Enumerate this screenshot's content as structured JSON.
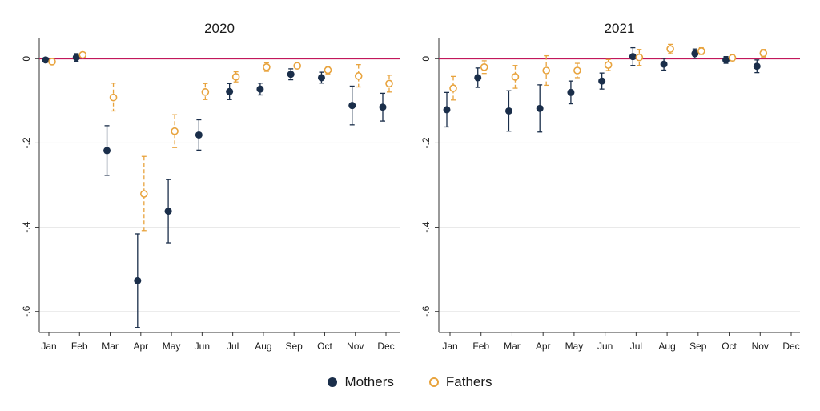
{
  "chart_data": [
    {
      "type": "scatter",
      "title": "2020",
      "xlabel": "",
      "ylabel": "",
      "categories": [
        "Jan",
        "Feb",
        "Mar",
        "Apr",
        "May",
        "Jun",
        "Jul",
        "Aug",
        "Sep",
        "Oct",
        "Nov",
        "Dec"
      ],
      "yticks": [
        "0",
        "-.2",
        "-.4",
        "-.6"
      ],
      "ytick_values": [
        0,
        -0.2,
        -0.4,
        -0.6
      ],
      "ylim": [
        -0.65,
        0.05
      ],
      "reference_line": 0,
      "grid": true,
      "series": [
        {
          "name": "Mothers",
          "marker": "filled-circle",
          "values": [
            -0.003,
            0.003,
            -0.218,
            -0.527,
            -0.362,
            -0.181,
            -0.078,
            -0.072,
            -0.037,
            -0.045,
            -0.111,
            -0.115
          ],
          "ci_low": [
            null,
            -0.006,
            -0.277,
            -0.638,
            -0.437,
            -0.217,
            -0.097,
            -0.086,
            -0.05,
            -0.058,
            -0.157,
            -0.148
          ],
          "ci_high": [
            null,
            0.012,
            -0.159,
            -0.416,
            -0.287,
            -0.145,
            -0.059,
            -0.058,
            -0.024,
            -0.032,
            -0.065,
            -0.082
          ]
        },
        {
          "name": "Fathers",
          "marker": "hollow-circle",
          "values": [
            -0.007,
            0.009,
            -0.092,
            -0.321,
            -0.172,
            -0.079,
            -0.043,
            -0.02,
            -0.017,
            -0.027,
            -0.041,
            -0.059
          ],
          "ci_low": [
            null,
            0.003,
            -0.124,
            -0.408,
            -0.211,
            -0.097,
            -0.055,
            -0.03,
            -0.023,
            -0.036,
            -0.067,
            -0.079
          ],
          "ci_high": [
            null,
            0.015,
            -0.058,
            -0.232,
            -0.133,
            -0.059,
            -0.031,
            -0.01,
            -0.011,
            -0.018,
            -0.014,
            -0.039
          ]
        }
      ]
    },
    {
      "type": "scatter",
      "title": "2021",
      "xlabel": "",
      "ylabel": "",
      "categories": [
        "Jan",
        "Feb",
        "Mar",
        "Apr",
        "May",
        "Jun",
        "Jul",
        "Aug",
        "Sep",
        "Oct",
        "Nov",
        "Dec"
      ],
      "yticks": [
        "0",
        "-.2",
        "-.4",
        "-.6"
      ],
      "ytick_values": [
        0,
        -0.2,
        -0.4,
        -0.6
      ],
      "ylim": [
        -0.65,
        0.05
      ],
      "reference_line": 0,
      "grid": true,
      "series": [
        {
          "name": "Mothers",
          "marker": "filled-circle",
          "values": [
            -0.121,
            -0.045,
            -0.124,
            -0.118,
            -0.08,
            -0.053,
            0.005,
            -0.013,
            0.012,
            -0.003,
            -0.018,
            null
          ],
          "ci_low": [
            -0.162,
            -0.068,
            -0.172,
            -0.174,
            -0.107,
            -0.072,
            -0.016,
            -0.027,
            0.001,
            -0.011,
            -0.033,
            null
          ],
          "ci_high": [
            -0.08,
            -0.022,
            -0.076,
            -0.062,
            -0.053,
            -0.034,
            0.026,
            0.001,
            0.023,
            0.005,
            -0.003,
            null
          ]
        },
        {
          "name": "Fathers",
          "marker": "hollow-circle",
          "values": [
            -0.07,
            -0.02,
            -0.043,
            -0.028,
            -0.028,
            -0.015,
            0.003,
            0.023,
            0.018,
            0.002,
            0.013,
            null
          ],
          "ci_low": [
            -0.098,
            -0.035,
            -0.07,
            -0.063,
            -0.045,
            -0.028,
            -0.016,
            0.012,
            0.01,
            -0.005,
            0.004,
            null
          ],
          "ci_high": [
            -0.042,
            -0.005,
            -0.016,
            0.007,
            -0.011,
            -0.002,
            0.022,
            0.034,
            0.026,
            0.009,
            0.022,
            null
          ]
        }
      ]
    }
  ],
  "legend": {
    "placement": "bottom",
    "items": [
      {
        "label": "Mothers",
        "color": "#1a2e4a",
        "marker": "filled-circle"
      },
      {
        "label": "Fathers",
        "color": "#e8a33d",
        "marker": "hollow-circle"
      }
    ]
  },
  "colors": {
    "mothers": "#1a2e4a",
    "fathers": "#e8a33d",
    "reference_line": "#c2185b",
    "grid": "#e6e6e6",
    "axis": "#333333"
  }
}
